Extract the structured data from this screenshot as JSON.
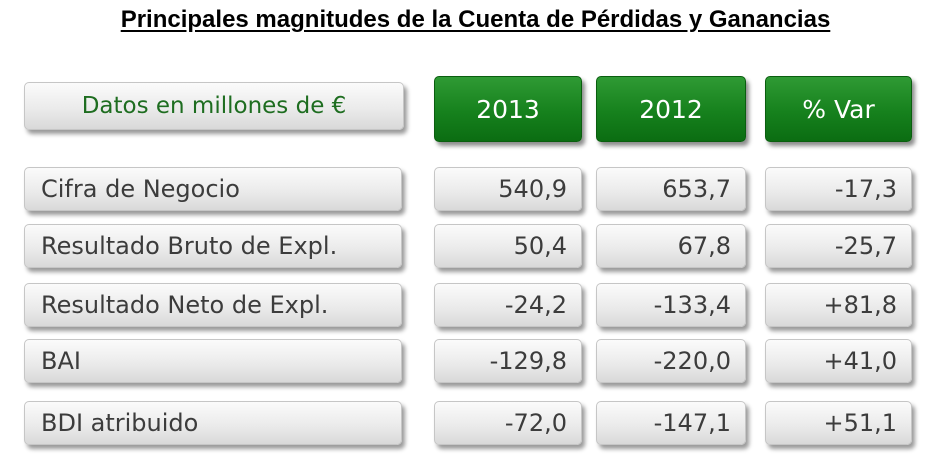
{
  "chart_data": {
    "type": "table",
    "title": "Principales magnitudes de la Cuenta de Pérdidas y Ganancias",
    "header_label": "Datos en millones de €",
    "columns": [
      "2013",
      "2012",
      "% Var"
    ],
    "rows": [
      {
        "label": "Cifra de Negocio",
        "values": [
          "540,9",
          "653,7",
          "-17,3"
        ]
      },
      {
        "label": "Resultado Bruto de Expl.",
        "values": [
          "50,4",
          "67,8",
          "-25,7"
        ]
      },
      {
        "label": "Resultado Neto de Expl.",
        "values": [
          "-24,2",
          "-133,4",
          "+81,8"
        ]
      },
      {
        "label": "BAI",
        "values": [
          "-129,8",
          "-220,0",
          "+41,0"
        ]
      },
      {
        "label": "BDI atribuido",
        "values": [
          "-72,0",
          "-147,1",
          "+51,1"
        ]
      }
    ]
  },
  "colors": {
    "header_green": "#16811d",
    "header_label_text": "#1e6d20",
    "cell_text": "#3c3c3c"
  }
}
